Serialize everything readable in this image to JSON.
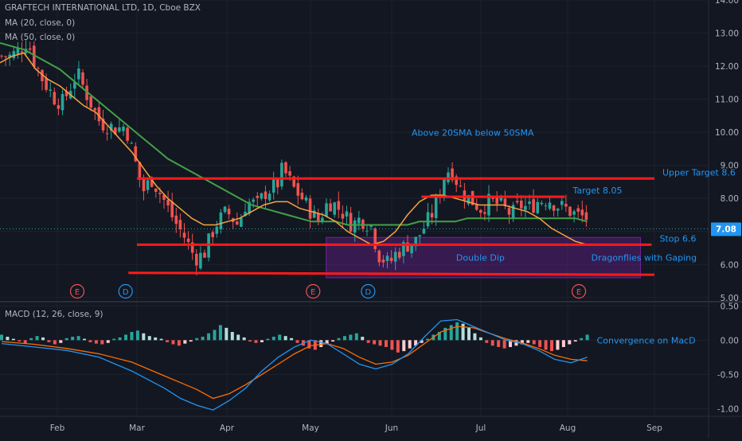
{
  "header": {
    "symbol_line": "GRAFTECH INTERNATIONAL LTD, 1D, Cboe BZX",
    "ma20_label": "MA (20, close, 0)",
    "ma50_label": "MA (50, close, 0)",
    "macd_label": "MACD (12, 26, close, 9)"
  },
  "colors": {
    "background": "#131722",
    "grid": "#1e222d",
    "up": "#26a69a",
    "down": "#ef5350",
    "ma20": "#f7a440",
    "ma50": "#43a047",
    "drawing_line": "#ff1a1a",
    "annotation_text": "#2196f3",
    "range_box": "rgba(123,31,162,0.35)",
    "macd_line": "#2196f3",
    "signal_line": "#ff6d00",
    "last_price_badge": "#2196f3"
  },
  "chart_data": [
    {
      "type": "candlestick",
      "panel": "price",
      "title": "GRAFTECH INTERNATIONAL LTD, 1D, Cboe BZX",
      "ylim": [
        4.9,
        14.0
      ],
      "y_ticks": [
        "14.00",
        "13.00",
        "12.00",
        "11.00",
        "10.00",
        "9.00",
        "8.00",
        "7.00",
        "6.00",
        "5.00"
      ],
      "x_ticks": [
        "Feb",
        "Mar",
        "Apr",
        "May",
        "Jun",
        "Jul",
        "Aug",
        "Sep"
      ],
      "last_price": "7.08",
      "close_trace": [
        [
          "Jan 10",
          12.3
        ],
        [
          "Jan 14",
          12.5
        ],
        [
          "Jan 18",
          12.8
        ],
        [
          "Jan 20",
          12.3
        ],
        [
          "Jan 25",
          11.6
        ],
        [
          "Jan 31",
          11.0
        ],
        [
          "Feb 3",
          10.9
        ],
        [
          "Feb 8",
          11.8
        ],
        [
          "Feb 11",
          11.2
        ],
        [
          "Feb 16",
          10.3
        ],
        [
          "Feb 22",
          10.1
        ],
        [
          "Feb 25",
          10.2
        ],
        [
          "Mar 1",
          8.9
        ],
        [
          "Mar 3",
          8.2
        ],
        [
          "Mar 6",
          8.6
        ],
        [
          "Mar 10",
          8.0
        ],
        [
          "Mar 14",
          7.3
        ],
        [
          "Mar 17",
          6.9
        ],
        [
          "Mar 21",
          6.2
        ],
        [
          "Mar 24",
          6.3
        ],
        [
          "Mar 28",
          7.2
        ],
        [
          "Apr 1",
          7.6
        ],
        [
          "Apr 5",
          7.2
        ],
        [
          "Apr 8",
          7.9
        ],
        [
          "Apr 12",
          7.8
        ],
        [
          "Apr 15",
          8.2
        ],
        [
          "Apr 19",
          8.4
        ],
        [
          "Apr 21",
          8.9
        ],
        [
          "Apr 25",
          8.3
        ],
        [
          "Apr 28",
          8.0
        ],
        [
          "May 2",
          7.5
        ],
        [
          "May 4",
          7.3
        ],
        [
          "May 7",
          7.8
        ],
        [
          "May 9",
          7.9
        ],
        [
          "May 13",
          7.6
        ],
        [
          "May 17",
          7.2
        ],
        [
          "May 20",
          7.4
        ],
        [
          "May 24",
          7.2
        ],
        [
          "May 27",
          6.3
        ],
        [
          "May 31",
          6.0
        ],
        [
          "Jun 2",
          6.3
        ],
        [
          "Jun 6",
          6.6
        ],
        [
          "Jun 9",
          6.7
        ],
        [
          "Jun 11",
          7.0
        ],
        [
          "Jun 15",
          7.6
        ],
        [
          "Jun 17",
          8.1
        ],
        [
          "Jun 19",
          8.8
        ],
        [
          "Jun 21",
          8.9
        ],
        [
          "Jun 24",
          8.3
        ],
        [
          "Jun 27",
          8.0
        ],
        [
          "Jul 1",
          7.7
        ],
        [
          "Jul 4",
          7.9
        ],
        [
          "Jul 8",
          7.8
        ],
        [
          "Jul 12",
          7.5
        ],
        [
          "Jul 15",
          7.8
        ],
        [
          "Jul 18",
          7.7
        ],
        [
          "Jul 21",
          7.9
        ],
        [
          "Jul 25",
          8.0
        ],
        [
          "Jul 28",
          7.8
        ],
        [
          "Jul 31",
          7.7
        ],
        [
          "Aug 4",
          7.5
        ],
        [
          "Aug 8",
          7.4
        ],
        [
          "Aug 11",
          7.3
        ],
        [
          "Aug 15",
          7.0
        ],
        [
          "Aug 18",
          7.5
        ],
        [
          "Aug 20",
          7.7
        ],
        [
          "Aug 23",
          7.4
        ],
        [
          "Aug 26",
          7.1
        ],
        [
          "Aug 30",
          6.9
        ],
        [
          "Sep 2",
          6.3
        ],
        [
          "Sep 6",
          6.4
        ],
        [
          "Sep 9",
          6.2
        ],
        [
          "Sep 13",
          6.0
        ],
        [
          "Sep 16",
          6.2
        ],
        [
          "Sep 20",
          6.5
        ],
        [
          "Sep 23",
          6.8
        ],
        [
          "Sep 27",
          7.08
        ]
      ],
      "ma20_trace": [
        [
          12.1,
          12.3
        ],
        [
          12.4,
          11.9
        ],
        [
          11.6,
          11.4
        ],
        [
          11.1,
          10.8
        ],
        [
          10.6,
          10.2
        ],
        [
          9.8,
          9.4
        ],
        [
          8.9,
          8.4
        ],
        [
          8.0,
          7.7
        ],
        [
          7.4,
          7.2
        ],
        [
          7.2,
          7.3
        ],
        [
          7.4,
          7.6
        ],
        [
          7.8,
          7.9
        ],
        [
          7.9,
          7.7
        ],
        [
          7.6,
          7.5
        ],
        [
          7.3,
          7.0
        ],
        [
          6.8,
          6.6
        ],
        [
          6.7,
          7.0
        ],
        [
          7.5,
          7.9
        ],
        [
          8.1,
          8.1
        ],
        [
          8.0,
          7.9
        ],
        [
          7.8,
          7.8
        ],
        [
          7.8,
          7.7
        ],
        [
          7.6,
          7.4
        ],
        [
          7.1,
          6.9
        ],
        [
          6.7,
          6.6
        ]
      ],
      "ma50_trace": [
        [
          12.7,
          12.6
        ],
        [
          12.5,
          12.3
        ],
        [
          12.1,
          11.9
        ],
        [
          11.6,
          11.3
        ],
        [
          11.0,
          10.7
        ],
        [
          10.4,
          10.1
        ],
        [
          9.8,
          9.5
        ],
        [
          9.2,
          9.0
        ],
        [
          8.8,
          8.6
        ],
        [
          8.4,
          8.2
        ],
        [
          8.0,
          7.8
        ],
        [
          7.7,
          7.6
        ],
        [
          7.5,
          7.4
        ],
        [
          7.3,
          7.3
        ],
        [
          7.3,
          7.2
        ],
        [
          7.2,
          7.2
        ],
        [
          7.2,
          7.2
        ],
        [
          7.2,
          7.3
        ],
        [
          7.3,
          7.3
        ],
        [
          7.3,
          7.4
        ],
        [
          7.4,
          7.4
        ],
        [
          7.4,
          7.4
        ],
        [
          7.4,
          7.4
        ],
        [
          7.4,
          7.4
        ],
        [
          7.4,
          7.3
        ]
      ],
      "levels": [
        {
          "label": "Upper Target 8.6",
          "value": 8.6
        },
        {
          "label": "Target 8.05",
          "value": 8.05
        },
        {
          "label": "Stop 6.6",
          "value": 6.6
        },
        {
          "label": "",
          "value": 5.75
        }
      ],
      "annotations": [
        {
          "text": "Above 20SMA below 50SMA"
        },
        {
          "text": "Double Dip"
        },
        {
          "text": "Dragonflies with Gaping"
        }
      ],
      "event_markers": [
        {
          "label": "E",
          "date": "Feb 8"
        },
        {
          "label": "D",
          "date": "Feb 25"
        },
        {
          "label": "E",
          "date": "May 2"
        },
        {
          "label": "D",
          "date": "May 23"
        },
        {
          "label": "E",
          "date": "Aug 5"
        }
      ]
    },
    {
      "type": "bar",
      "panel": "macd",
      "title": "MACD (12, 26, close, 9)",
      "ylim": [
        -1.1,
        0.55
      ],
      "y_ticks": [
        "0.50",
        "0.00",
        "-0.50",
        "-1.00"
      ],
      "histogram": [
        0.08,
        0.05,
        0.02,
        -0.02,
        -0.05,
        0.03,
        0.06,
        0.04,
        -0.03,
        -0.06,
        -0.04,
        0.03,
        0.05,
        0.06,
        0.02,
        -0.03,
        -0.05,
        -0.06,
        -0.04,
        0.02,
        0.04,
        0.08,
        0.12,
        0.14,
        0.1,
        0.06,
        0.04,
        0.02,
        -0.03,
        -0.06,
        -0.08,
        -0.05,
        -0.02,
        0.03,
        0.05,
        0.1,
        0.15,
        0.22,
        0.18,
        0.12,
        0.08,
        0.04,
        -0.02,
        -0.04,
        -0.03,
        0.02,
        0.05,
        0.08,
        0.06,
        0.03,
        -0.04,
        -0.08,
        -0.12,
        -0.14,
        -0.1,
        -0.06,
        -0.02,
        0.03,
        0.06,
        0.08,
        0.1,
        0.05,
        -0.04,
        -0.06,
        -0.08,
        -0.1,
        -0.14,
        -0.18,
        -0.16,
        -0.12,
        -0.08,
        -0.04,
        0.02,
        0.08,
        0.12,
        0.18,
        0.22,
        0.26,
        0.24,
        0.18,
        0.1,
        0.04,
        -0.04,
        -0.08,
        -0.1,
        -0.12,
        -0.1,
        -0.08,
        -0.06,
        -0.04,
        -0.06,
        -0.1,
        -0.14,
        -0.16,
        -0.14,
        -0.1,
        -0.06,
        -0.02,
        0.03,
        0.08
      ],
      "macd_line": [
        [
          0,
          -0.05
        ],
        [
          8,
          -0.1
        ],
        [
          16,
          -0.15
        ],
        [
          24,
          -0.25
        ],
        [
          32,
          -0.45
        ],
        [
          40,
          -0.7
        ],
        [
          44,
          -0.85
        ],
        [
          48,
          -0.95
        ],
        [
          52,
          -1.02
        ],
        [
          56,
          -0.88
        ],
        [
          60,
          -0.7
        ],
        [
          64,
          -0.45
        ],
        [
          68,
          -0.25
        ],
        [
          72,
          -0.1
        ],
        [
          76,
          0.0
        ],
        [
          80,
          -0.05
        ],
        [
          84,
          -0.2
        ],
        [
          88,
          -0.35
        ],
        [
          92,
          -0.42
        ],
        [
          96,
          -0.35
        ],
        [
          100,
          -0.2
        ],
        [
          104,
          0.05
        ],
        [
          108,
          0.28
        ],
        [
          112,
          0.3
        ],
        [
          116,
          0.2
        ],
        [
          120,
          0.1
        ],
        [
          124,
          0.0
        ],
        [
          128,
          -0.05
        ],
        [
          132,
          -0.15
        ],
        [
          136,
          -0.28
        ],
        [
          140,
          -0.33
        ],
        [
          144,
          -0.25
        ]
      ],
      "signal_line": [
        [
          0,
          -0.02
        ],
        [
          8,
          -0.06
        ],
        [
          16,
          -0.12
        ],
        [
          24,
          -0.2
        ],
        [
          32,
          -0.32
        ],
        [
          40,
          -0.52
        ],
        [
          44,
          -0.62
        ],
        [
          48,
          -0.72
        ],
        [
          52,
          -0.85
        ],
        [
          56,
          -0.78
        ],
        [
          60,
          -0.65
        ],
        [
          64,
          -0.5
        ],
        [
          68,
          -0.35
        ],
        [
          72,
          -0.2
        ],
        [
          76,
          -0.08
        ],
        [
          80,
          -0.05
        ],
        [
          84,
          -0.12
        ],
        [
          88,
          -0.25
        ],
        [
          92,
          -0.35
        ],
        [
          96,
          -0.32
        ],
        [
          100,
          -0.22
        ],
        [
          104,
          -0.05
        ],
        [
          108,
          0.12
        ],
        [
          112,
          0.2
        ],
        [
          116,
          0.18
        ],
        [
          120,
          0.1
        ],
        [
          124,
          0.02
        ],
        [
          128,
          -0.04
        ],
        [
          132,
          -0.12
        ],
        [
          136,
          -0.22
        ],
        [
          140,
          -0.28
        ],
        [
          144,
          -0.3
        ]
      ],
      "annotation": "Convergence on MacD"
    }
  ]
}
